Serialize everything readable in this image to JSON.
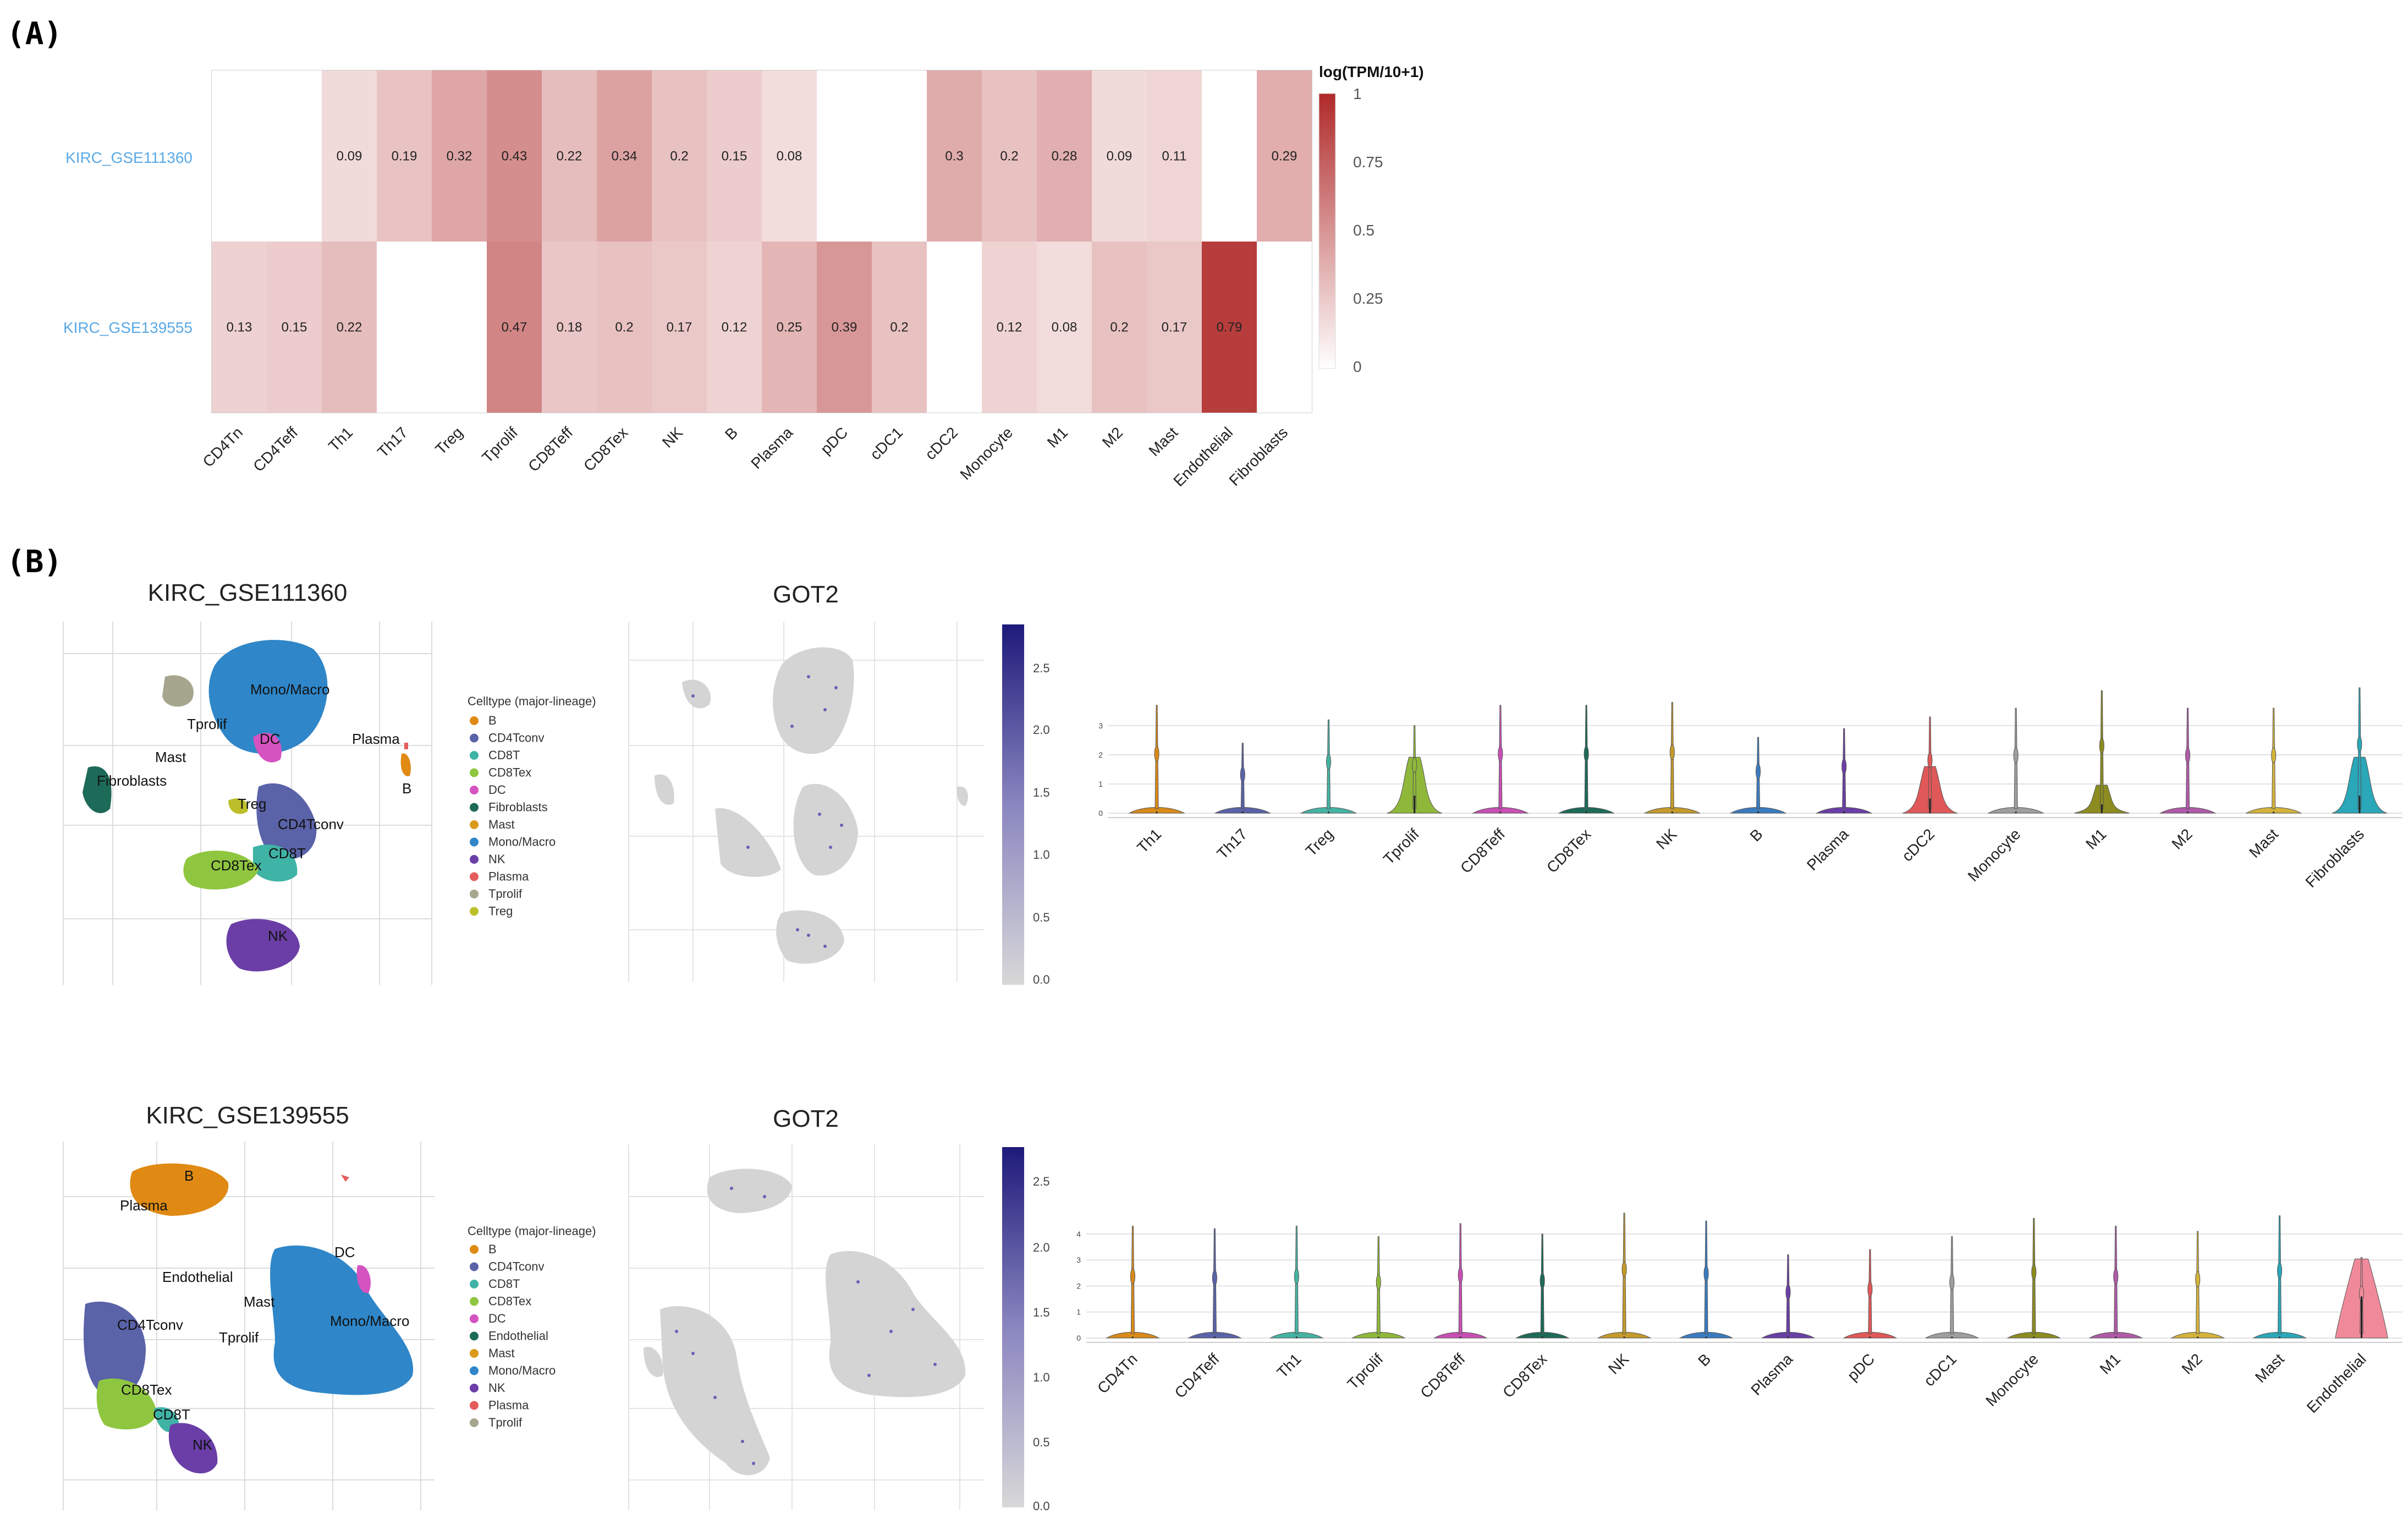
{
  "panels": {
    "a": "(A)",
    "b": "(B)"
  },
  "heatmap": {
    "columns": [
      "CD4Tn",
      "CD4Teff",
      "Th1",
      "Th17",
      "Treg",
      "Tprolif",
      "CD8Teff",
      "CD8Tex",
      "NK",
      "B",
      "Plasma",
      "pDC",
      "cDC1",
      "cDC2",
      "Monocyte",
      "M1",
      "M2",
      "Mast",
      "Endothelial",
      "Fibroblasts"
    ],
    "rows": [
      {
        "name": "KIRC_GSE111360",
        "values": [
          null,
          null,
          0.09,
          0.19,
          0.32,
          0.43,
          0.22,
          0.34,
          0.2,
          0.15,
          0.08,
          null,
          null,
          0.3,
          0.2,
          0.28,
          0.09,
          0.11,
          null,
          0.29
        ]
      },
      {
        "name": "KIRC_GSE139555",
        "values": [
          0.13,
          0.15,
          0.22,
          null,
          null,
          0.47,
          0.18,
          0.2,
          0.17,
          0.12,
          0.25,
          0.39,
          0.2,
          null,
          0.12,
          0.08,
          0.2,
          0.17,
          0.79,
          null
        ]
      }
    ],
    "colorbar": {
      "title": "log(TPM/10+1)",
      "ticks": [
        "1",
        "0.75",
        "0.5",
        "0.25",
        "0"
      ],
      "low_color": "#ffffff",
      "high_color": "#b02a2a"
    }
  },
  "umap1": {
    "title": "KIRC_GSE111360",
    "legend_title": "Celltype (major-lineage)",
    "legend": [
      {
        "label": "B",
        "color": "#e08a13"
      },
      {
        "label": "CD4Tconv",
        "color": "#5a62a8"
      },
      {
        "label": "CD8T",
        "color": "#3fb3a6"
      },
      {
        "label": "CD8Tex",
        "color": "#8fc640"
      },
      {
        "label": "DC",
        "color": "#d552c1"
      },
      {
        "label": "Fibroblasts",
        "color": "#1e6a58"
      },
      {
        "label": "Mast",
        "color": "#d99a1a"
      },
      {
        "label": "Mono/Macro",
        "color": "#2f86c8"
      },
      {
        "label": "NK",
        "color": "#6a3ea6"
      },
      {
        "label": "Plasma",
        "color": "#e45c5c"
      },
      {
        "label": "Tprolif",
        "color": "#a6a68f"
      },
      {
        "label": "Treg",
        "color": "#bcbf2a"
      }
    ],
    "cluster_labels": [
      "Mono/Macro",
      "Tprolif",
      "DC",
      "Plasma",
      "Mast",
      "B",
      "Fibroblasts",
      "Treg",
      "CD4Tconv",
      "CD8T",
      "CD8Tex",
      "NK"
    ]
  },
  "umap2": {
    "title": "KIRC_GSE139555",
    "legend_title": "Celltype (major-lineage)",
    "legend": [
      {
        "label": "B",
        "color": "#e08a13"
      },
      {
        "label": "CD4Tconv",
        "color": "#5a62a8"
      },
      {
        "label": "CD8T",
        "color": "#3fb3a6"
      },
      {
        "label": "CD8Tex",
        "color": "#8fc640"
      },
      {
        "label": "DC",
        "color": "#d552c1"
      },
      {
        "label": "Endothelial",
        "color": "#1e6a58"
      },
      {
        "label": "Mast",
        "color": "#d99a1a"
      },
      {
        "label": "Mono/Macro",
        "color": "#2f86c8"
      },
      {
        "label": "NK",
        "color": "#6a3ea6"
      },
      {
        "label": "Plasma",
        "color": "#e45c5c"
      },
      {
        "label": "Tprolif",
        "color": "#a6a68f"
      }
    ],
    "cluster_labels": [
      "B",
      "Plasma",
      "DC",
      "Endothelial",
      "Mast",
      "CD4Tconv",
      "Tprolif",
      "Mono/Macro",
      "CD8Tex",
      "CD8T",
      "NK"
    ]
  },
  "gene1": {
    "title": "GOT2",
    "ticks": [
      "2.5",
      "2.0",
      "1.5",
      "1.0",
      "0.5",
      "0.0"
    ]
  },
  "gene2": {
    "title": "GOT2",
    "ticks": [
      "2.5",
      "2.0",
      "1.5",
      "1.0",
      "0.5",
      "0.0"
    ]
  },
  "chart_data": [
    {
      "type": "heatmap",
      "title": "log(TPM/10+1)",
      "x": [
        "CD4Tn",
        "CD4Teff",
        "Th1",
        "Th17",
        "Treg",
        "Tprolif",
        "CD8Teff",
        "CD8Tex",
        "NK",
        "B",
        "Plasma",
        "pDC",
        "cDC1",
        "cDC2",
        "Monocyte",
        "M1",
        "M2",
        "Mast",
        "Endothelial",
        "Fibroblasts"
      ],
      "y": [
        "KIRC_GSE111360",
        "KIRC_GSE139555"
      ],
      "values": [
        [
          null,
          null,
          0.09,
          0.19,
          0.32,
          0.43,
          0.22,
          0.34,
          0.2,
          0.15,
          0.08,
          null,
          null,
          0.3,
          0.2,
          0.28,
          0.09,
          0.11,
          null,
          0.29
        ],
        [
          0.13,
          0.15,
          0.22,
          null,
          null,
          0.47,
          0.18,
          0.2,
          0.17,
          0.12,
          0.25,
          0.39,
          0.2,
          null,
          0.12,
          0.08,
          0.2,
          0.17,
          0.79,
          null
        ]
      ],
      "zlim": [
        0,
        1
      ]
    },
    {
      "type": "violin",
      "title": "KIRC_GSE111360",
      "categories": [
        "Th1",
        "Th17",
        "Treg",
        "Tprolif",
        "CD8Teff",
        "CD8Tex",
        "NK",
        "B",
        "Plasma",
        "cDC2",
        "Monocyte",
        "M1",
        "M2",
        "Mast",
        "Fibroblasts"
      ],
      "colors": [
        "#d98a1a",
        "#5a62a8",
        "#45b3a3",
        "#8fb83a",
        "#c74fb3",
        "#1e6a58",
        "#c49a2a",
        "#3a7bbf",
        "#6a3ea6",
        "#e05858",
        "#9e9e9e",
        "#8c8c20",
        "#b05aa8",
        "#d4b33a",
        "#2aa7b8"
      ],
      "max": [
        3.7,
        2.4,
        3.2,
        3.0,
        3.7,
        3.7,
        3.8,
        2.6,
        2.9,
        3.3,
        3.6,
        4.2,
        3.6,
        3.6,
        4.3
      ],
      "median": [
        0,
        0,
        0,
        0.6,
        0,
        0,
        0,
        0,
        0,
        0.5,
        0,
        0.3,
        0,
        0,
        0.6
      ],
      "yticks": [
        0,
        1,
        2,
        3
      ],
      "ylim": [
        0,
        4.3
      ]
    },
    {
      "type": "violin",
      "title": "KIRC_GSE139555",
      "categories": [
        "CD4Tn",
        "CD4Teff",
        "Th1",
        "Tprolif",
        "CD8Teff",
        "CD8Tex",
        "NK",
        "B",
        "Plasma",
        "pDC",
        "cDC1",
        "Monocyte",
        "M1",
        "M2",
        "Mast",
        "Endothelial"
      ],
      "colors": [
        "#d98a1a",
        "#5a62a8",
        "#45b3a3",
        "#8fb83a",
        "#c74fb3",
        "#1e6a58",
        "#c49a2a",
        "#3a7bbf",
        "#6a3ea6",
        "#e05858",
        "#9e9e9e",
        "#8c8c20",
        "#b05aa8",
        "#d4b33a",
        "#2aa7b8",
        "#f08a9a"
      ],
      "max": [
        4.3,
        4.2,
        4.3,
        3.9,
        4.4,
        4.0,
        4.8,
        4.5,
        3.2,
        3.4,
        3.9,
        4.6,
        4.3,
        4.1,
        4.7,
        3.1
      ],
      "median": [
        0,
        0,
        0,
        0,
        0,
        0,
        0,
        0,
        0,
        0,
        0,
        0,
        0,
        0,
        0,
        1.6
      ],
      "yticks": [
        0,
        1,
        2,
        3,
        4
      ],
      "ylim": [
        0,
        4.8
      ]
    }
  ]
}
